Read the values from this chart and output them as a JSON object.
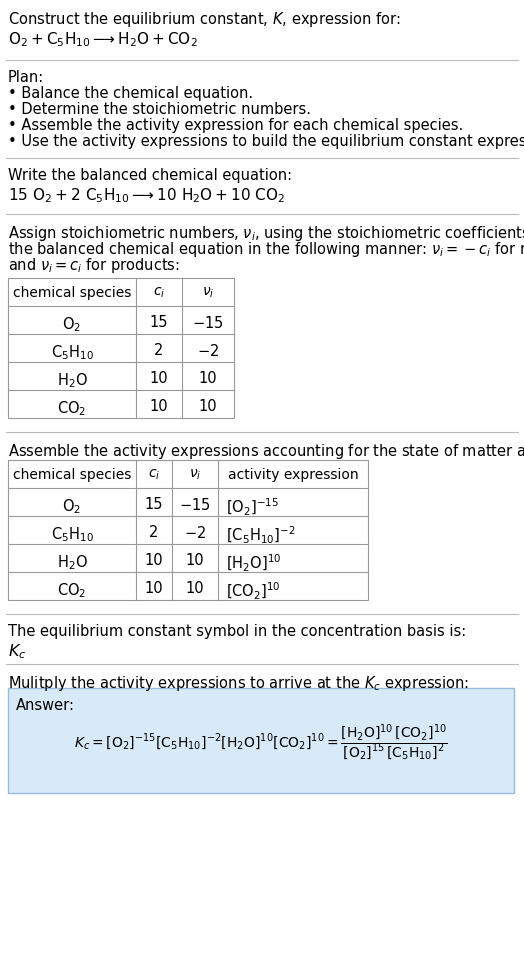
{
  "title_line1": "Construct the equilibrium constant, $K$, expression for:",
  "title_line2": "$\\mathrm{O_2 + C_5H_{10} \\longrightarrow H_2O + CO_2}$",
  "background_color": "#ffffff",
  "plan_header": "Plan:",
  "plan_bullets": [
    "• Balance the chemical equation.",
    "• Determine the stoichiometric numbers.",
    "• Assemble the activity expression for each chemical species.",
    "• Use the activity expressions to build the equilibrium constant expression."
  ],
  "balanced_header": "Write the balanced chemical equation:",
  "balanced_eq": "$\\mathrm{15\\ O_2 + 2\\ C_5H_{10} \\longrightarrow 10\\ H_2O + 10\\ CO_2}$",
  "stoich_lines": [
    "Assign stoichiometric numbers, $\\nu_i$, using the stoichiometric coefficients, $c_i$, from",
    "the balanced chemical equation in the following manner: $\\nu_i = -c_i$ for reactants",
    "and $\\nu_i = c_i$ for products:"
  ],
  "table1_headers": [
    "chemical species",
    "$c_i$",
    "$\\nu_i$"
  ],
  "table1_rows": [
    [
      "$\\mathrm{O_2}$",
      "15",
      "$-15$"
    ],
    [
      "$\\mathrm{C_5H_{10}}$",
      "2",
      "$-2$"
    ],
    [
      "$\\mathrm{H_2O}$",
      "10",
      "10"
    ],
    [
      "$\\mathrm{CO_2}$",
      "10",
      "10"
    ]
  ],
  "activity_header": "Assemble the activity expressions accounting for the state of matter and $\\nu_i$:",
  "table2_headers": [
    "chemical species",
    "$c_i$",
    "$\\nu_i$",
    "activity expression"
  ],
  "table2_rows": [
    [
      "$\\mathrm{O_2}$",
      "15",
      "$-15$",
      "$[\\mathrm{O_2}]^{-15}$"
    ],
    [
      "$\\mathrm{C_5H_{10}}$",
      "2",
      "$-2$",
      "$[\\mathrm{C_5H_{10}}]^{-2}$"
    ],
    [
      "$\\mathrm{H_2O}$",
      "10",
      "10",
      "$[\\mathrm{H_2O}]^{10}$"
    ],
    [
      "$\\mathrm{CO_2}$",
      "10",
      "10",
      "$[\\mathrm{CO_2}]^{10}$"
    ]
  ],
  "kc_text": "The equilibrium constant symbol in the concentration basis is:",
  "kc_symbol": "$K_c$",
  "multiply_header": "Mulitply the activity expressions to arrive at the $K_c$ expression:",
  "answer_label": "Answer:",
  "answer_box_color": "#ddeeff",
  "table_line_color": "#999999",
  "sep_line_color": "#bbbbbb",
  "font_size": 10.5
}
